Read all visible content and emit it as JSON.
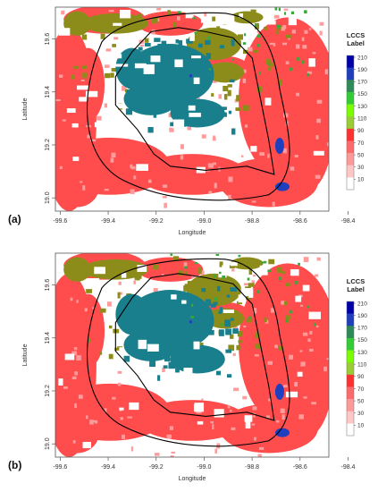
{
  "panels": [
    {
      "label": "(a)",
      "xlabel": "Longitude",
      "ylabel": "Latitude",
      "x_ticks": [
        "-99.6",
        "-99.4",
        "-99.2",
        "-99.0",
        "-98.8",
        "-98.6",
        "-98.4"
      ],
      "x_tick_values": [
        -99.6,
        -99.4,
        -99.2,
        -99.0,
        -98.8,
        -98.6,
        -98.4
      ],
      "y_ticks": [
        "19.0",
        "19.2",
        "19.4",
        "19.6"
      ],
      "y_tick_values": [
        19.0,
        19.2,
        19.4,
        19.6
      ],
      "xlim": [
        -99.62,
        -98.48
      ],
      "ylim": [
        18.95,
        19.72
      ],
      "legend": {
        "title_line1": "LCCS",
        "title_line2": "Label",
        "labels": [
          "210",
          "190",
          "170",
          "150",
          "130",
          "110",
          "90",
          "70",
          "50",
          "30",
          "10"
        ]
      }
    },
    {
      "label": "(b)",
      "xlabel": "Longitude",
      "ylabel": "Latitude",
      "x_ticks": [
        "-99.6",
        "-99.4",
        "-99.2",
        "-99.0",
        "-98.8",
        "-98.6",
        "-98.4"
      ],
      "x_tick_values": [
        -99.6,
        -99.4,
        -99.2,
        -99.0,
        -98.8,
        -98.6,
        -98.4
      ],
      "y_ticks": [
        "19.0",
        "19.2",
        "19.4",
        "19.6"
      ],
      "y_tick_values": [
        19.0,
        19.2,
        19.4,
        19.6
      ],
      "xlim": [
        -99.62,
        -98.48
      ],
      "ylim": [
        18.95,
        19.72
      ],
      "legend": {
        "title_line1": "LCCS",
        "title_line2": "Label",
        "labels": [
          "210",
          "190",
          "170",
          "150",
          "130",
          "110",
          "90",
          "70",
          "50",
          "30",
          "10"
        ]
      }
    }
  ],
  "colors": {
    "urban_red": "#ff4d4d",
    "pink": "#ff9b9b",
    "teal": "#1a7f8c",
    "olive": "#8c8c1a",
    "blue": "#1f3fbf",
    "green": "#3aa83a",
    "boundary": "#000000",
    "legend_scale": [
      "#0000aa",
      "#1f3fbf",
      "#2e8b57",
      "#32cd32",
      "#7cfc00",
      "#9acd32",
      "#ff3030",
      "#ff6a6a",
      "#ff9999",
      "#ffc6c6",
      "#ffffff"
    ]
  }
}
